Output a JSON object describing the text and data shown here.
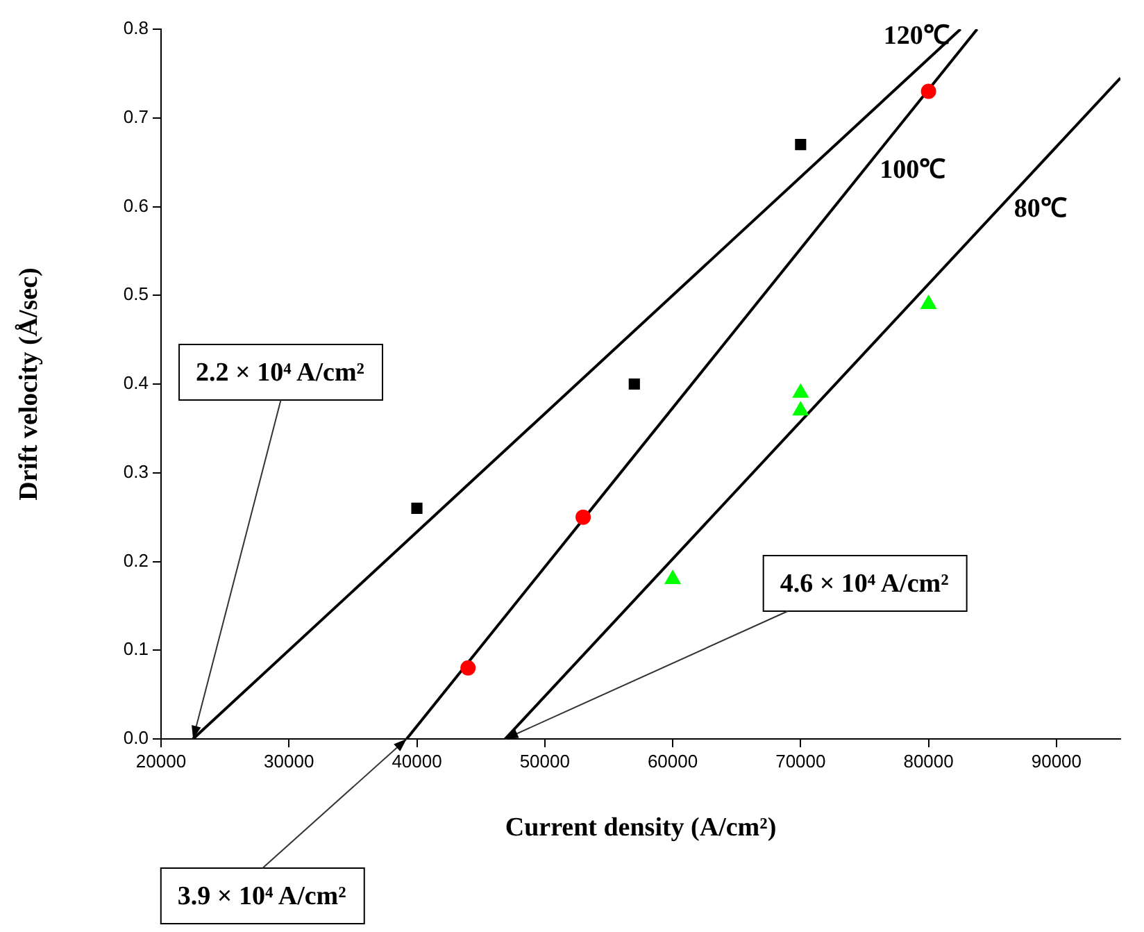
{
  "chart_data": {
    "type": "scatter",
    "xlabel": "Current density (A/cm²)",
    "ylabel": "Drift velocity (Å/sec)",
    "xlim": [
      20000,
      95000
    ],
    "ylim": [
      0,
      0.8
    ],
    "xticks": [
      20000,
      30000,
      40000,
      50000,
      60000,
      70000,
      80000,
      90000
    ],
    "yticks": [
      {
        "value": 0,
        "label": "0.0"
      },
      {
        "value": 0.1,
        "label": "0.1"
      },
      {
        "value": 0.2,
        "label": "0.2"
      },
      {
        "value": 0.3,
        "label": "0.3"
      },
      {
        "value": 0.4,
        "label": "0.4"
      },
      {
        "value": 0.5,
        "label": "0.5"
      },
      {
        "value": 0.6,
        "label": "0.6"
      },
      {
        "value": 0.7,
        "label": "0.7"
      },
      {
        "value": 0.8,
        "label": "0.8"
      }
    ],
    "grid": false,
    "series": [
      {
        "color": "#000000",
        "marker": "square",
        "x": [
          40000,
          57000,
          70000
        ],
        "values": [
          0.26,
          0.4,
          0.67
        ]
      },
      {
        "color": "#ff0000",
        "marker": "circle",
        "x": [
          44000,
          53000,
          80000
        ],
        "values": [
          0.08,
          0.25,
          0.73
        ]
      },
      {
        "color": "#00ff00",
        "marker": "triangle",
        "x": [
          60000,
          70000,
          70000,
          80000
        ],
        "values": [
          0.18,
          0.39,
          0.37,
          0.49
        ]
      },
      {
        "type": "line",
        "name": "120℃",
        "color": "#000000",
        "marker": "none",
        "x": [
          22500,
          82500
        ],
        "values": [
          0,
          0.8
        ]
      },
      {
        "type": "line",
        "name": "100℃",
        "color": "#000000",
        "marker": "none",
        "x": [
          39200,
          83800
        ],
        "values": [
          0,
          0.8
        ]
      },
      {
        "type": "line",
        "name": "80℃",
        "color": "#000000",
        "marker": "none",
        "x": [
          46900,
          95000
        ],
        "values": [
          0,
          0.745
        ]
      }
    ],
    "annotations": [
      {
        "text": "2.2 × 10⁴ A/cm²",
        "x": 22500,
        "y": 0
      },
      {
        "text": "3.9 × 10⁴ A/cm²",
        "x": 39200,
        "y": 0
      },
      {
        "text": "4.6 × 10⁴ A/cm²",
        "x": 46900,
        "y": 0
      }
    ]
  }
}
